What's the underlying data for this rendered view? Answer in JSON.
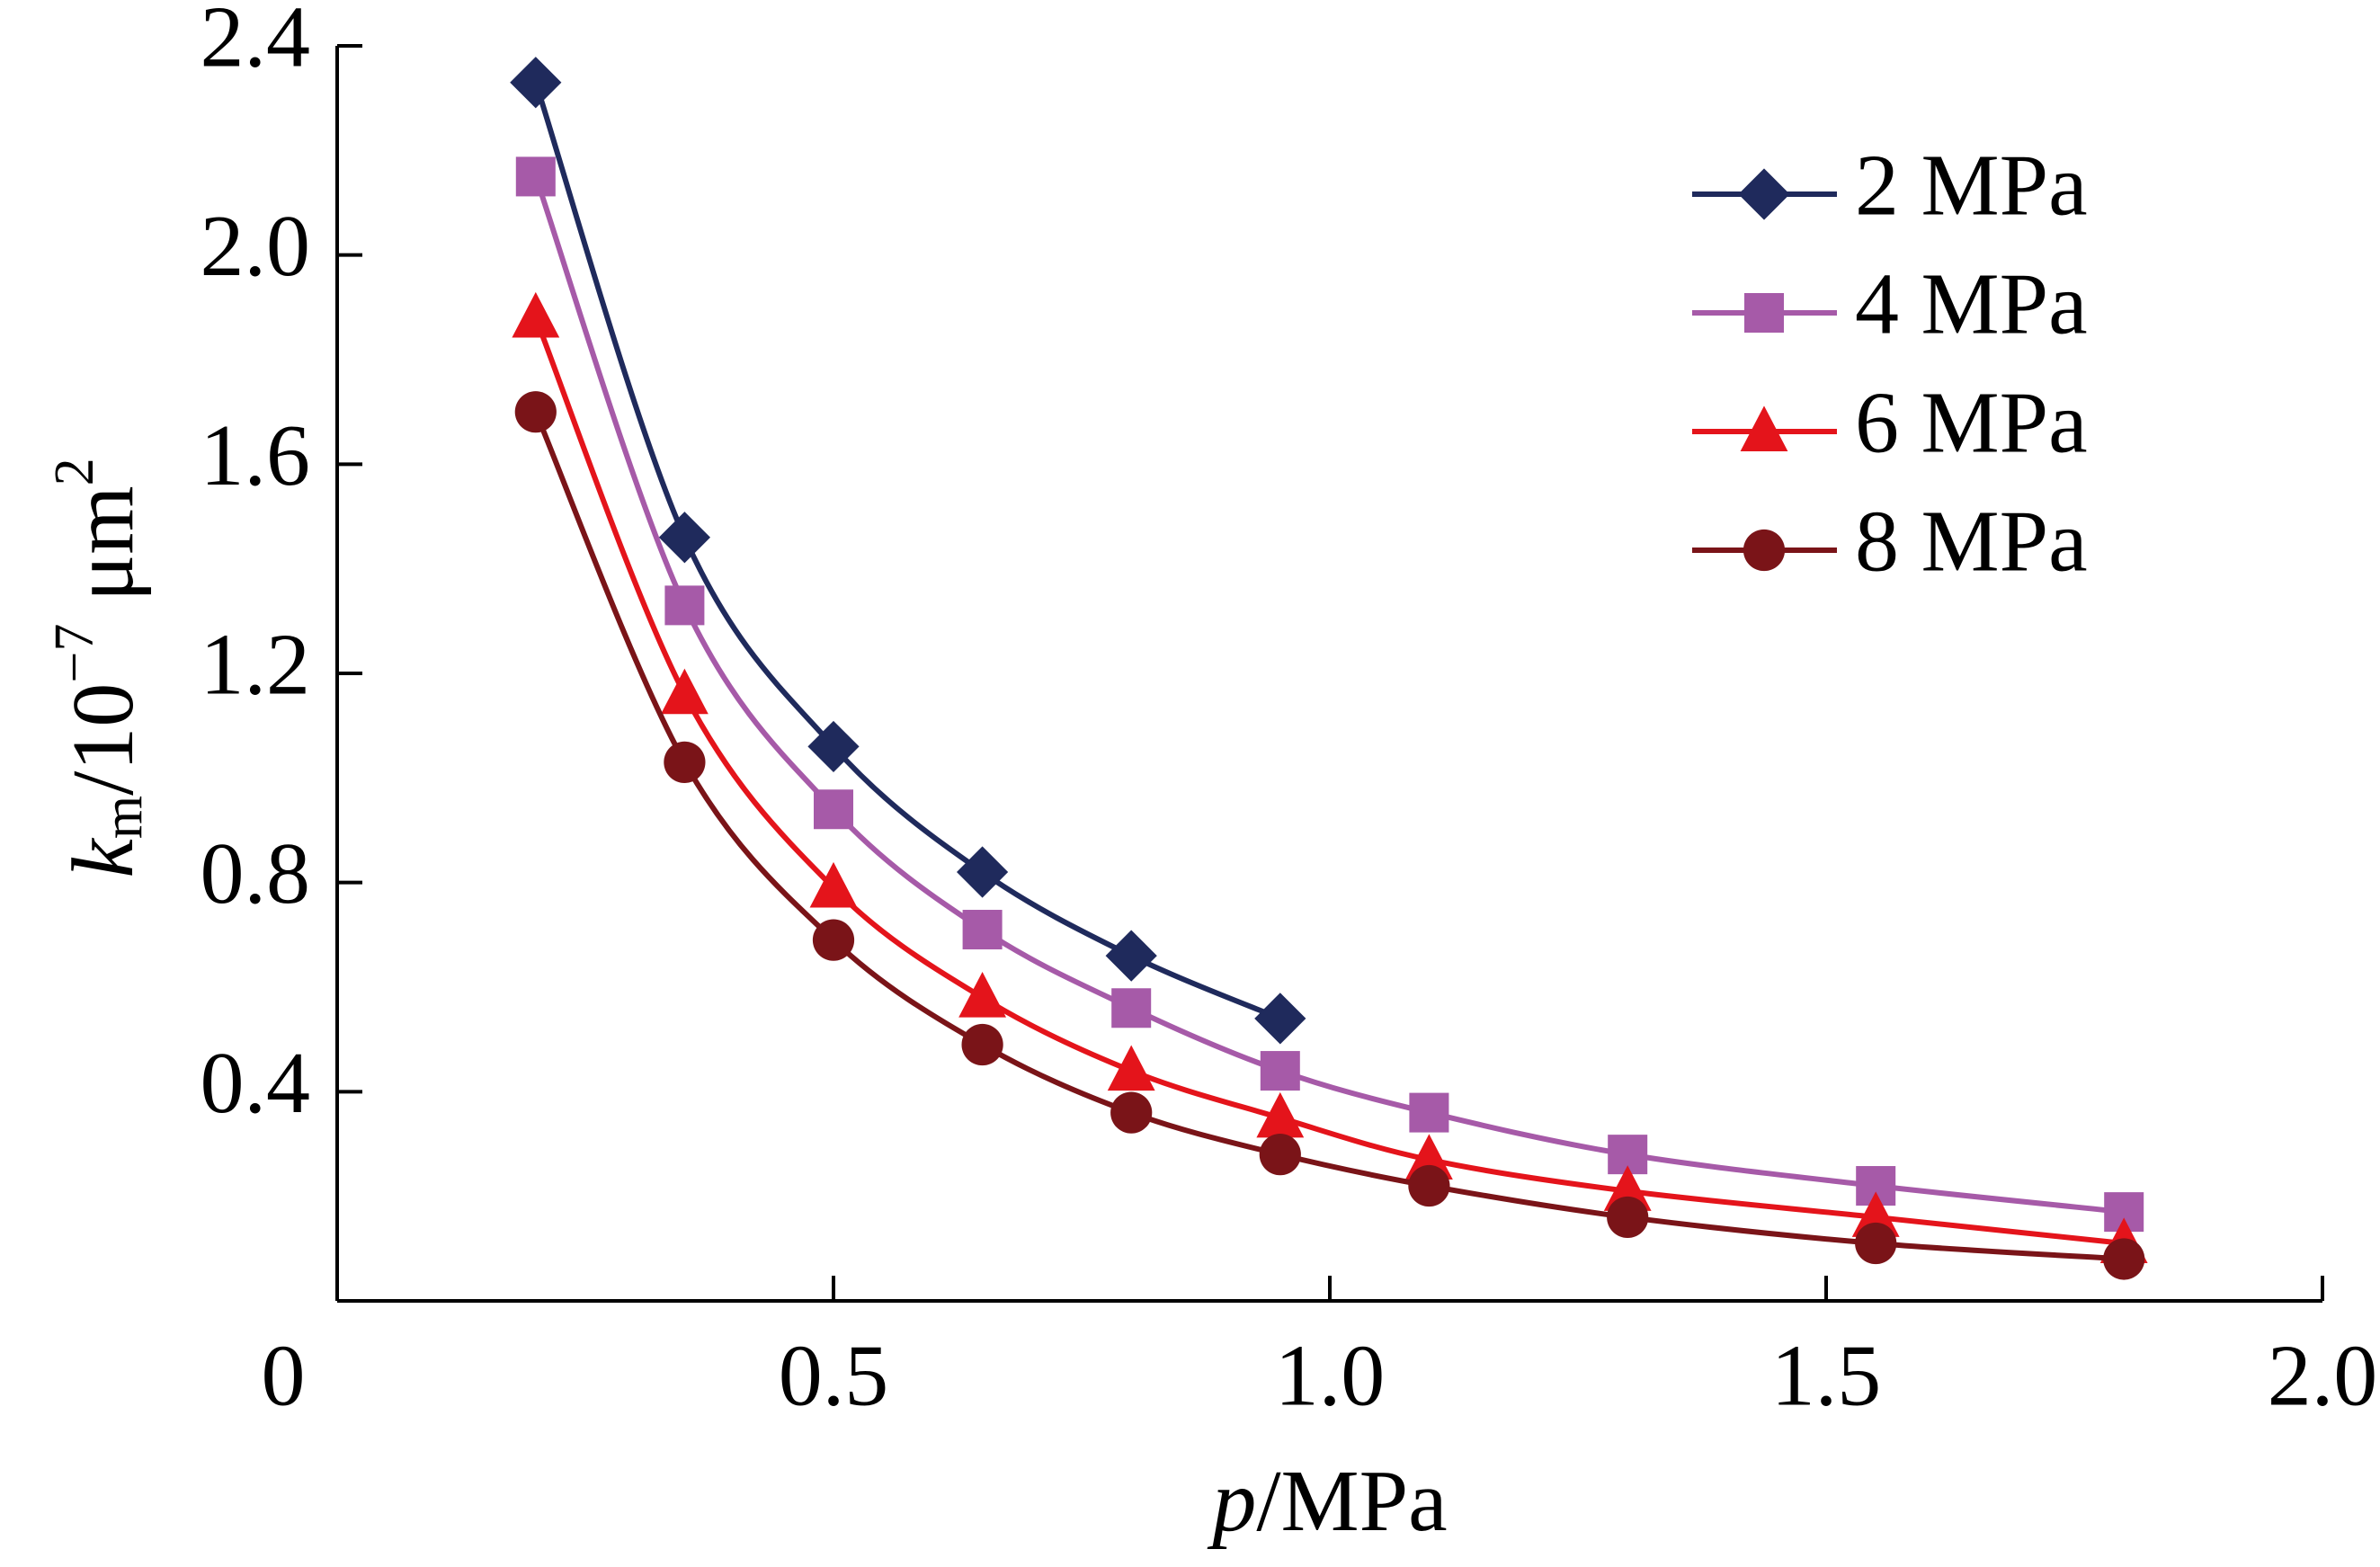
{
  "chart_data": {
    "type": "line",
    "xlabel": [
      "p",
      "/MPa"
    ],
    "ylabel": [
      "k",
      "m",
      "/10",
      "−7",
      " μm",
      "2"
    ],
    "xlim": [
      0,
      2
    ],
    "xticks": [
      0,
      0.5,
      {
        "value": 1,
        "label": "1.0"
      },
      1.5,
      {
        "value": 2,
        "label": "2.0"
      }
    ],
    "ylim": [
      0,
      2.4
    ],
    "yticks": [
      0.4,
      0.8,
      1.2,
      1.6,
      {
        "value": 2,
        "label": "2.0"
      },
      2.4
    ],
    "legend": "upper right",
    "series": [
      {
        "name": "2 MPa",
        "color": "#1f2a5c",
        "marker": "diamond",
        "x": [
          0.2,
          0.35,
          0.5,
          0.65,
          0.8,
          0.95
        ],
        "values": [
          2.33,
          1.46,
          1.06,
          0.82,
          0.66,
          0.54
        ]
      },
      {
        "name": "4 MPa",
        "color": "#a65aa8",
        "marker": "square",
        "x": [
          0.2,
          0.35,
          0.5,
          0.65,
          0.8,
          0.95,
          1.1,
          1.3,
          1.55,
          1.8
        ],
        "values": [
          2.15,
          1.33,
          0.94,
          0.71,
          0.56,
          0.44,
          0.36,
          0.28,
          0.22,
          0.17
        ]
      },
      {
        "name": "6 MPa",
        "color": "#e4141b",
        "marker": "triangle",
        "x": [
          0.2,
          0.35,
          0.5,
          0.65,
          0.8,
          0.95,
          1.1,
          1.3,
          1.55,
          1.8
        ],
        "values": [
          1.88,
          1.16,
          0.79,
          0.58,
          0.44,
          0.35,
          0.27,
          0.21,
          0.16,
          0.11
        ]
      },
      {
        "name": "8 MPa",
        "color": "#7a1418",
        "marker": "circle",
        "x": [
          0.2,
          0.35,
          0.5,
          0.65,
          0.8,
          0.95,
          1.1,
          1.3,
          1.55,
          1.8
        ],
        "values": [
          1.7,
          1.03,
          0.69,
          0.49,
          0.36,
          0.28,
          0.22,
          0.16,
          0.11,
          0.08
        ]
      }
    ]
  }
}
